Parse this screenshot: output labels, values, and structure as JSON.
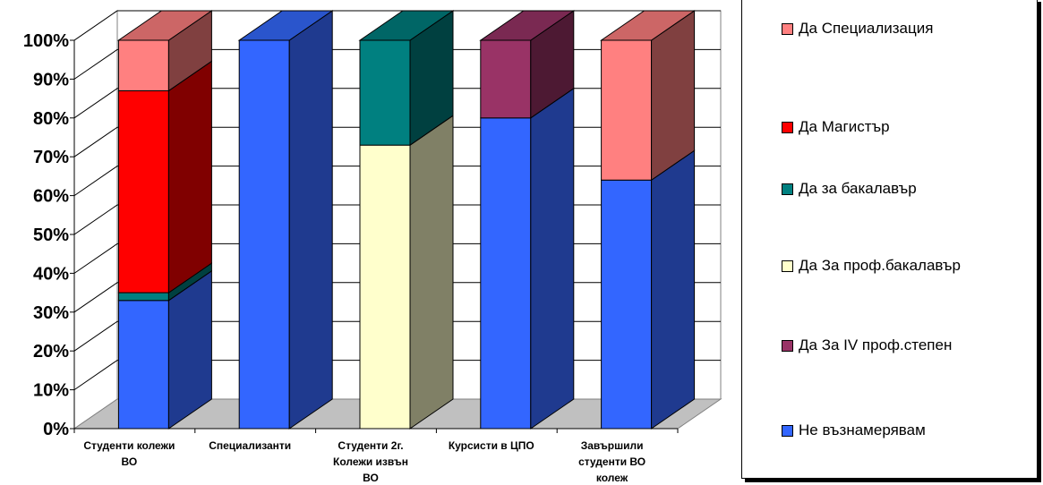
{
  "chart_data": {
    "type": "bar",
    "stacked": true,
    "three_d": true,
    "percent_axis": true,
    "categories": [
      [
        "Студенти колежи",
        "ВО"
      ],
      [
        "Специализанти"
      ],
      [
        "Студенти 2г.",
        "Колежи извън",
        "ВО"
      ],
      [
        "Курсисти в ЦПО"
      ],
      [
        "Завършили",
        "студенти ВО",
        "колеж"
      ]
    ],
    "y_ticks": [
      "0%",
      "10%",
      "20%",
      "30%",
      "40%",
      "50%",
      "60%",
      "70%",
      "80%",
      "90%",
      "100%"
    ],
    "ylim": [
      0,
      100
    ],
    "grid": true,
    "legend_position": "right",
    "series": [
      {
        "name": "Не възнамерявам",
        "values": [
          33,
          100,
          0,
          80,
          64
        ],
        "color": "#3366ff",
        "side": "#1f3a8f",
        "top": "#2a55cc"
      },
      {
        "name": "Да  За IV проф.степен",
        "values": [
          0,
          0,
          0,
          20,
          0
        ],
        "color": "#993366",
        "side": "#4d1933",
        "top": "#7a2952"
      },
      {
        "name": "Да За проф.бакалавър",
        "values": [
          0,
          0,
          73,
          0,
          0
        ],
        "color": "#ffffcc",
        "side": "#808066",
        "top": "#cccca3"
      },
      {
        "name": "Да  за бакалавър",
        "values": [
          2,
          0,
          27,
          0,
          0
        ],
        "color": "#008080",
        "side": "#004040",
        "top": "#006666"
      },
      {
        "name": "Да Магистър",
        "values": [
          52,
          0,
          0,
          0,
          0
        ],
        "color": "#ff0000",
        "side": "#800000",
        "top": "#cc0000"
      },
      {
        "name": "Да Специализация",
        "values": [
          13,
          0,
          0,
          0,
          36
        ],
        "color": "#ff8080",
        "side": "#804040",
        "top": "#cc6666"
      }
    ],
    "legend_order": [
      "Да Специализация",
      "Да Магистър",
      "Да  за бакалавър",
      "Да За проф.бакалавър",
      "Да  За IV проф.степен",
      "Не възнамерявам"
    ]
  }
}
